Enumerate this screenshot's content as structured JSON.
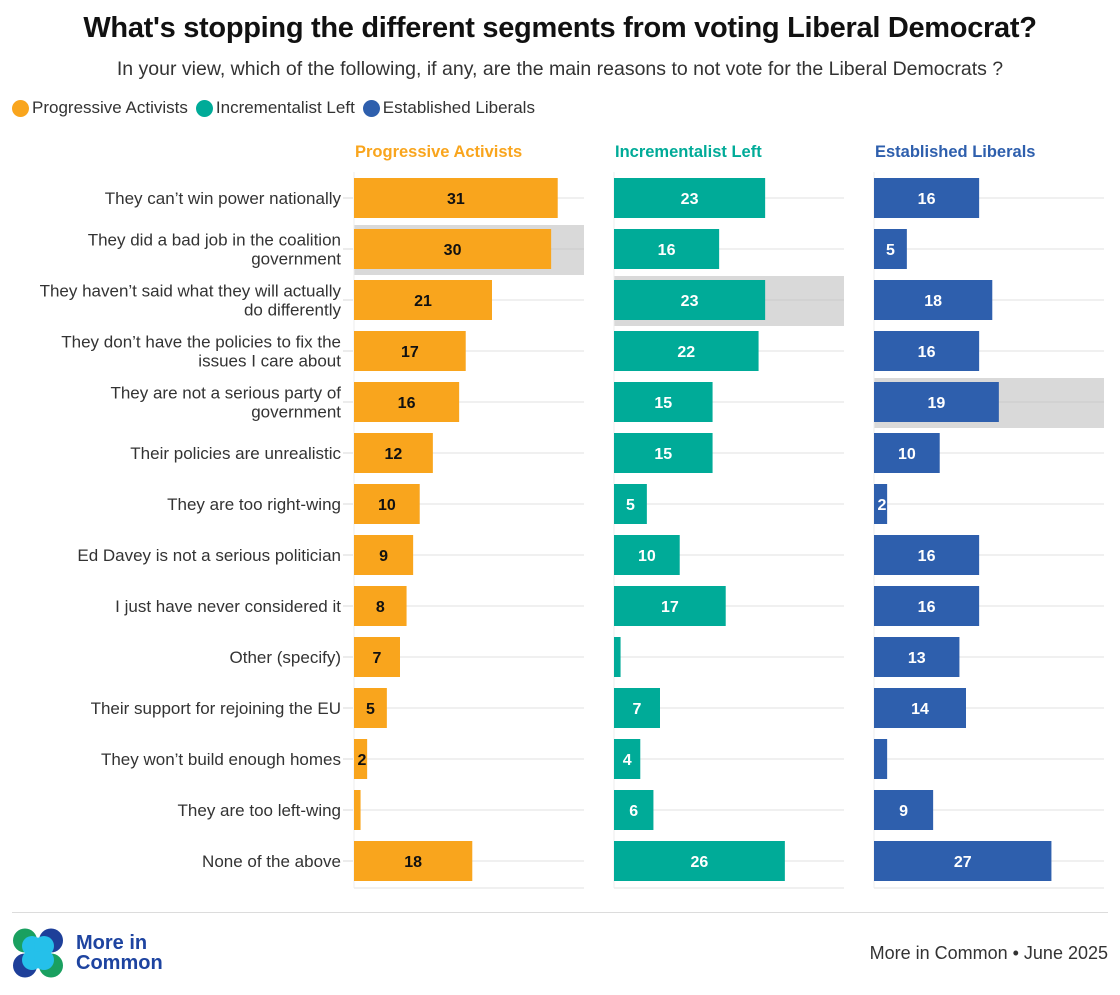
{
  "header": {
    "title": "What's stopping the different segments from voting Liberal Democrat?",
    "subtitle": "In your view, which of the following, if any, are the main reasons to not vote for the Liberal Democrats ?"
  },
  "legend": [
    {
      "label": "Progressive Activists",
      "color": "#f9a51d",
      "icon": "circle-icon"
    },
    {
      "label": "Incrementalist Left",
      "color": "#00ab98",
      "icon": "circle-icon"
    },
    {
      "label": "Established Liberals",
      "color": "#2e5fad",
      "icon": "circle-icon"
    }
  ],
  "footer": {
    "logo_line1": "More in",
    "logo_line2": "Common",
    "credit": "More in Common • June 2025"
  },
  "chart_data": {
    "type": "bar",
    "orientation": "horizontal",
    "layout": "small-multiples",
    "title": "What's stopping the different segments from voting Liberal Democrat?",
    "subtitle": "In your view, which of the following, if any, are the main reasons to not vote for the Liberal Democrats ?",
    "xlabel": "",
    "ylabel": "",
    "xlim": [
      0,
      35
    ],
    "grid": false,
    "legend_position": "top-left",
    "categories": [
      "They can't win power nationally",
      "They did a bad job in the coalition government",
      "They haven't said what they will actually do differently",
      "They don't have the policies to fix the issues I care about",
      "They are not a serious party of government",
      "Their policies are unrealistic",
      "They are too right-wing",
      "Ed Davey is not a serious politician",
      "I just have never considered it",
      "Other (specify)",
      "Their support for rejoining the EU",
      "They won't build enough homes",
      "They are too left-wing",
      "None of the above"
    ],
    "category_lines": [
      [
        "They can’t win power nationally"
      ],
      [
        "They did a bad job in the coalition",
        "government"
      ],
      [
        "They haven’t said what they will actually",
        "do differently"
      ],
      [
        "They don’t have the policies to fix the",
        "issues I care about"
      ],
      [
        "They are not a serious party of",
        "government"
      ],
      [
        "Their policies are unrealistic"
      ],
      [
        "They are too right-wing"
      ],
      [
        "Ed Davey is not a serious politician"
      ],
      [
        "I just have never considered it"
      ],
      [
        "Other (specify)"
      ],
      [
        "Their support for rejoining the EU"
      ],
      [
        "They won’t build enough homes"
      ],
      [
        "They are too left-wing"
      ],
      [
        "None of the above"
      ]
    ],
    "series": [
      {
        "name": "Progressive Activists",
        "color": "#f9a51d",
        "label_color": "#111111",
        "values": [
          31,
          30,
          21,
          17,
          16,
          12,
          10,
          9,
          8,
          7,
          5,
          2,
          1,
          18
        ],
        "labels": [
          "31",
          "30",
          "21",
          "17",
          "16",
          "12",
          "10",
          "9",
          "8",
          "7",
          "5",
          "2",
          "",
          "18"
        ],
        "highlight_index": 1
      },
      {
        "name": "Incrementalist Left",
        "color": "#00ab98",
        "label_color": "#ffffff",
        "values": [
          23,
          16,
          23,
          22,
          15,
          15,
          5,
          10,
          17,
          1,
          7,
          4,
          6,
          26
        ],
        "labels": [
          "23",
          "16",
          "23",
          "22",
          "15",
          "15",
          "5",
          "10",
          "17",
          "",
          "7",
          "4",
          "6",
          "26"
        ],
        "highlight_index": 2
      },
      {
        "name": "Established Liberals",
        "color": "#2e5fad",
        "label_color": "#ffffff",
        "values": [
          16,
          5,
          18,
          16,
          19,
          10,
          2,
          16,
          16,
          13,
          14,
          2,
          9,
          27
        ],
        "labels": [
          "16",
          "5",
          "18",
          "16",
          "19",
          "10",
          "2",
          "16",
          "16",
          "13",
          "14",
          "",
          "9",
          "27"
        ],
        "highlight_index": 4
      }
    ]
  }
}
